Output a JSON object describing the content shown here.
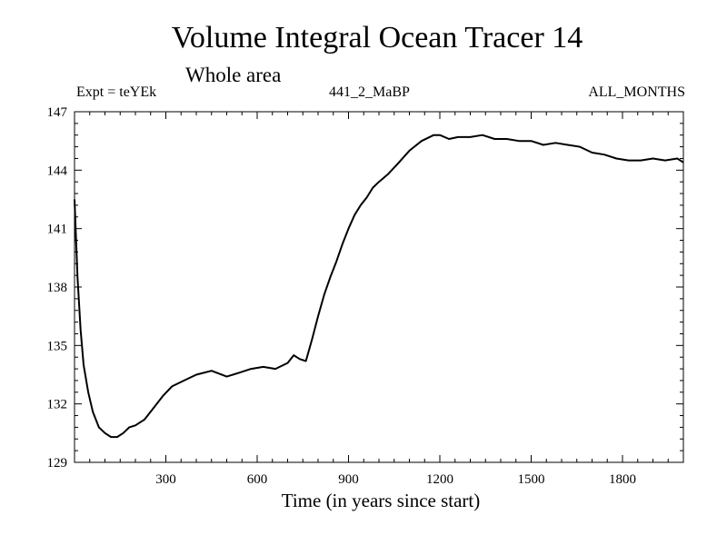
{
  "chart_data": {
    "type": "line",
    "title": "Volume Integral Ocean Tracer 14",
    "subtitle": "Whole area",
    "header_left": "Expt = teYEk",
    "header_center": "441_2_MaBP",
    "header_right": "ALL_MONTHS",
    "xlabel": "Time (in years since start)",
    "ylabel": "",
    "xlim": [
      0,
      2000
    ],
    "ylim": [
      129,
      147
    ],
    "xticks": [
      300,
      600,
      900,
      1200,
      1500,
      1800
    ],
    "yticks": [
      129,
      132,
      135,
      138,
      141,
      144,
      147
    ],
    "series": [
      {
        "name": "Volume Integral Ocean Tracer 14",
        "x": [
          0,
          10,
          20,
          30,
          45,
          60,
          80,
          100,
          120,
          140,
          160,
          180,
          200,
          230,
          260,
          290,
          320,
          360,
          400,
          450,
          500,
          540,
          580,
          620,
          660,
          700,
          720,
          740,
          760,
          780,
          800,
          820,
          840,
          860,
          880,
          900,
          920,
          940,
          960,
          980,
          1000,
          1030,
          1060,
          1100,
          1140,
          1180,
          1200,
          1230,
          1260,
          1300,
          1340,
          1380,
          1420,
          1460,
          1500,
          1540,
          1580,
          1620,
          1660,
          1700,
          1740,
          1780,
          1820,
          1860,
          1900,
          1940,
          1980,
          2000
        ],
        "y": [
          142.5,
          138.5,
          135.8,
          134.0,
          132.6,
          131.6,
          130.8,
          130.5,
          130.3,
          130.3,
          130.5,
          130.8,
          130.9,
          131.2,
          131.8,
          132.4,
          132.9,
          133.2,
          133.5,
          133.7,
          133.4,
          133.6,
          133.8,
          133.9,
          133.8,
          134.1,
          134.5,
          134.3,
          134.2,
          135.3,
          136.5,
          137.6,
          138.5,
          139.3,
          140.2,
          141.0,
          141.7,
          142.2,
          142.6,
          143.1,
          143.4,
          143.8,
          144.3,
          145.0,
          145.5,
          145.8,
          145.8,
          145.6,
          145.7,
          145.7,
          145.8,
          145.6,
          145.6,
          145.5,
          145.5,
          145.3,
          145.4,
          145.3,
          145.2,
          144.9,
          144.8,
          144.6,
          144.5,
          144.5,
          144.6,
          144.5,
          144.6,
          144.4
        ]
      }
    ]
  }
}
